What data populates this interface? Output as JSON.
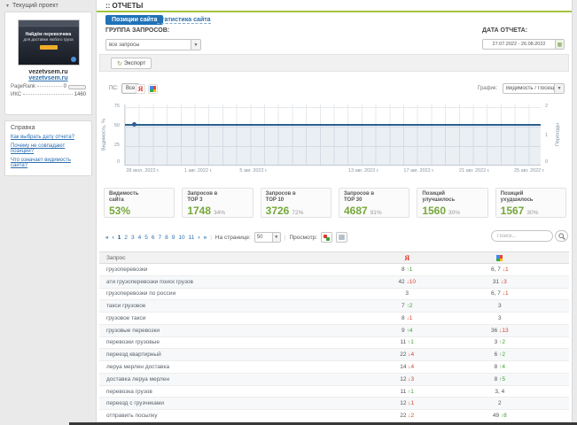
{
  "colors": {
    "accent_green": "#76a83a",
    "header_line_green": "#a3c43c",
    "tab_blue": "#1f72b8",
    "link_blue": "#2d6fb0",
    "up_green": "#3f9e2f",
    "down_red": "#d8432c",
    "chart_line_blue": "#2e608f"
  },
  "icons": {
    "collapse": "▾",
    "dropdown_arrow": "▼",
    "export": "↻",
    "calendar": "▦",
    "grid_view": "▦"
  },
  "sidebar": {
    "project_panel": {
      "title": "Текущий проект",
      "thumbnail": {
        "line1": "Найдём перевозчика",
        "line2": "для доставки любого груза"
      },
      "domain": "vezetvsem.ru",
      "domain_link": "vezetvsem.ru",
      "pagerank_label": "PageRank",
      "pagerank_value": "0",
      "iks_label": "ИКС",
      "iks_value": "1460"
    },
    "help_panel": {
      "title": "Справка",
      "links": [
        "Как выбрать дату отчета?",
        "Почему не совпадают позиции?",
        "Что означает видимость сайта?"
      ]
    }
  },
  "header": {
    "title": ":: ОТЧЕТЫ",
    "tabs": [
      {
        "label": "Позиции сайта",
        "active": true
      },
      {
        "label": "Статистика сайта",
        "active": false
      }
    ]
  },
  "filters": {
    "group_label": "ГРУППА ЗАПРОСОВ:",
    "group_value": "все запросы",
    "date_label": "ДАТА ОТЧЕТА:",
    "date_value": "27.07.2022 - 26.08.2022",
    "export_label": "Экспорт"
  },
  "chart": {
    "ps_label": "ПС:",
    "ps_all_label": "Все",
    "graph_label": "График:",
    "graph_value": "Видимость / Посещаемость"
  },
  "chart_data": {
    "type": "line",
    "title": "",
    "x_labels": [
      "28 июл. 2022 г.",
      "1 авг. 2022 г.",
      "5 авг. 2022 г.",
      "13 авг. 2022 г.",
      "17 авг. 2022 г.",
      "21 авг. 2022 г.",
      "25 авг. 2022 г."
    ],
    "y_left": {
      "label": "Видимость, %",
      "ticks": [
        "75",
        "50",
        "25",
        "0"
      ],
      "range": [
        0,
        80
      ]
    },
    "y_right": {
      "label": "Переходы",
      "ticks": [
        "2",
        "1",
        "0"
      ],
      "range": [
        0,
        2
      ]
    },
    "series": [
      {
        "name": "Видимость сайта",
        "shape": "constant",
        "value_percent": 53
      }
    ],
    "grid": true,
    "legend": "none"
  },
  "stats": [
    {
      "label1": "Видимость",
      "label2": "сайта",
      "value": "53%",
      "pct": ""
    },
    {
      "label1": "Запросов в",
      "label2": "TOP 3",
      "value": "1748",
      "pct": "34%"
    },
    {
      "label1": "Запросов в",
      "label2": "TOP 10",
      "value": "3726",
      "pct": "72%"
    },
    {
      "label1": "Запросов в",
      "label2": "TOP 30",
      "value": "4687",
      "pct": "91%"
    },
    {
      "label1": "Позиций",
      "label2": "улучшилось",
      "value": "1560",
      "pct": "30%"
    },
    {
      "label1": "Позиций",
      "label2": "ухудшилось",
      "value": "1567",
      "pct": "30%"
    }
  ],
  "toolbar": {
    "pagination": {
      "first": "«",
      "prev": "‹",
      "pages": [
        "1",
        "2",
        "3",
        "4",
        "5",
        "6",
        "7",
        "8",
        "9",
        "10",
        "11"
      ],
      "current": "1",
      "next": "›",
      "last": "»"
    },
    "per_page_label": "На странице:",
    "per_page_value": "50",
    "view_label": "Просмотр:",
    "search_placeholder": "Поиск..."
  },
  "table": {
    "query_header": "Запрос",
    "yandex_glyph": "Я",
    "rows": [
      {
        "query": "грузоперевозки",
        "y": {
          "pos": "8",
          "dir": "up",
          "diff": "1"
        },
        "g": {
          "pos": "6, 7",
          "dir": "down",
          "diff": "1"
        }
      },
      {
        "query": "ати грузоперевозки поиск грузов",
        "y": {
          "pos": "42",
          "dir": "down",
          "diff": "10"
        },
        "g": {
          "pos": "31",
          "dir": "down",
          "diff": "3"
        }
      },
      {
        "query": "грузоперевозки по россии",
        "y": {
          "pos": "3"
        },
        "g": {
          "pos": "6, 7",
          "dir": "down",
          "diff": "1"
        }
      },
      {
        "query": "такси грузовое",
        "y": {
          "pos": "7",
          "dir": "up",
          "diff": "2"
        },
        "g": {
          "pos": "3"
        }
      },
      {
        "query": "грузовое такси",
        "y": {
          "pos": "8",
          "dir": "down",
          "diff": "1"
        },
        "g": {
          "pos": "3"
        }
      },
      {
        "query": "грузовые перевозки",
        "y": {
          "pos": "9",
          "dir": "up",
          "diff": "4"
        },
        "g": {
          "pos": "36",
          "dir": "down",
          "diff": "13"
        }
      },
      {
        "query": "перевозки грузовые",
        "y": {
          "pos": "11",
          "dir": "up",
          "diff": "1"
        },
        "g": {
          "pos": "3",
          "dir": "up",
          "diff": "2"
        }
      },
      {
        "query": "переезд квартирный",
        "y": {
          "pos": "22",
          "dir": "down",
          "diff": "4"
        },
        "g": {
          "pos": "6",
          "dir": "up",
          "diff": "2"
        }
      },
      {
        "query": "леруа мерлен доставка",
        "y": {
          "pos": "14",
          "dir": "down",
          "diff": "4"
        },
        "g": {
          "pos": "8",
          "dir": "up",
          "diff": "4"
        }
      },
      {
        "query": "доставка леруа мерлен",
        "y": {
          "pos": "12",
          "dir": "down",
          "diff": "3"
        },
        "g": {
          "pos": "8",
          "dir": "up",
          "diff": "5"
        }
      },
      {
        "query": "перевозка грузов",
        "y": {
          "pos": "11",
          "dir": "up",
          "diff": "1"
        },
        "g": {
          "pos": "3, 4"
        }
      },
      {
        "query": "переезд с грузчиками",
        "y": {
          "pos": "12",
          "dir": "down",
          "diff": "1"
        },
        "g": {
          "pos": "2"
        }
      },
      {
        "query": "отправить посылку",
        "y": {
          "pos": "22",
          "dir": "down",
          "diff": "2"
        },
        "g": {
          "pos": "49",
          "dir": "up",
          "diff": "8"
        }
      }
    ]
  }
}
